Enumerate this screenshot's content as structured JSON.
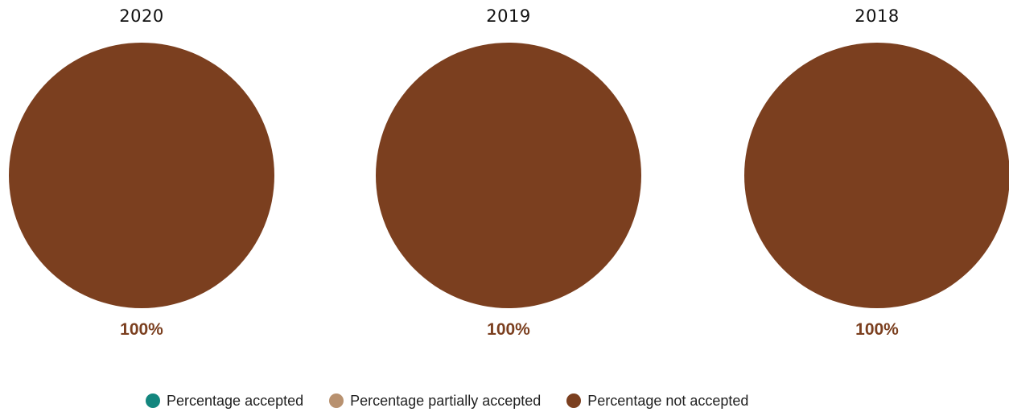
{
  "chart_data": [
    {
      "type": "pie",
      "title": "2020",
      "categories": [
        "Percentage accepted",
        "Percentage partially accepted",
        "Percentage not accepted"
      ],
      "values": [
        0,
        0,
        100
      ],
      "data_label": "100%"
    },
    {
      "type": "pie",
      "title": "2019",
      "categories": [
        "Percentage accepted",
        "Percentage partially accepted",
        "Percentage not accepted"
      ],
      "values": [
        0,
        0,
        100
      ],
      "data_label": "100%"
    },
    {
      "type": "pie",
      "title": "2018",
      "categories": [
        "Percentage accepted",
        "Percentage partially accepted",
        "Percentage not accepted"
      ],
      "values": [
        0,
        0,
        100
      ],
      "data_label": "100%"
    }
  ],
  "legend": {
    "placement": "bottom",
    "items": [
      {
        "label": "Percentage accepted",
        "color": "#13867e"
      },
      {
        "label": "Percentage partially accepted",
        "color": "#b8916f"
      },
      {
        "label": "Percentage not accepted",
        "color": "#7b3f1f"
      }
    ]
  },
  "colors": {
    "accepted": "#13867e",
    "partially_accepted": "#b8916f",
    "not_accepted": "#7b3f1f",
    "label": "#7b3f1f"
  }
}
